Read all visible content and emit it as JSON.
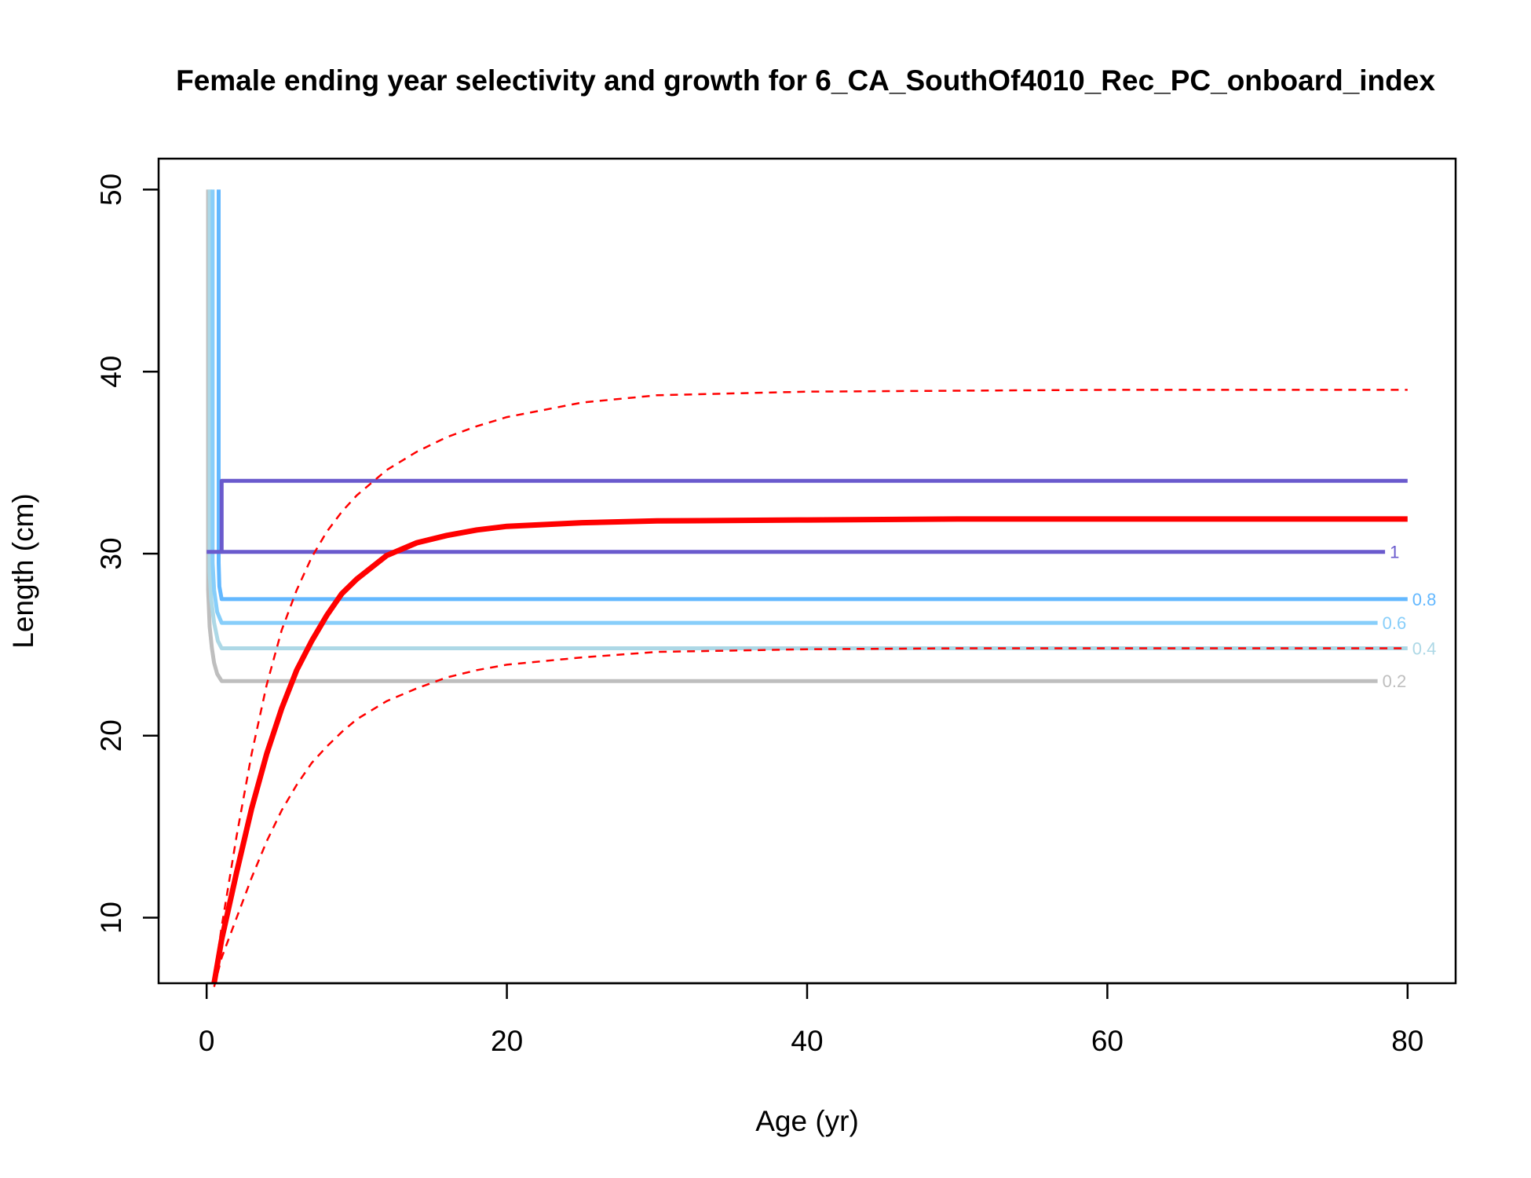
{
  "chart_data": {
    "type": "line",
    "title": "Female ending year selectivity and growth for 6_CA_SouthOf4010_Rec_PC_onboard_index",
    "xlabel": "Age (yr)",
    "ylabel": "Length (cm)",
    "xlim": [
      -3.2,
      83.2
    ],
    "ylim": [
      6.4,
      51.7
    ],
    "xticks": [
      0,
      20,
      40,
      60,
      80
    ],
    "yticks": [
      10,
      20,
      30,
      40,
      50
    ],
    "grid": false,
    "legend": "none",
    "growth": {
      "color": "#ff0000",
      "mean": {
        "x": [
          0.5,
          1,
          2,
          3,
          4,
          5,
          6,
          7,
          8,
          9,
          10,
          12,
          14,
          16,
          18,
          20,
          25,
          30,
          40,
          50,
          60,
          70,
          80
        ],
        "y": [
          6.4,
          8.8,
          12.5,
          16.0,
          19.0,
          21.5,
          23.6,
          25.2,
          26.6,
          27.8,
          28.6,
          29.9,
          30.6,
          31.0,
          31.3,
          31.5,
          31.7,
          31.8,
          31.85,
          31.9,
          31.9,
          31.9,
          31.9
        ]
      },
      "upper": {
        "x": [
          0.5,
          1,
          2,
          3,
          4,
          5,
          6,
          7,
          8,
          9,
          10,
          12,
          14,
          16,
          18,
          20,
          25,
          30,
          40,
          50,
          60,
          70,
          80
        ],
        "y": [
          6.6,
          9.5,
          14.5,
          19.0,
          22.8,
          25.8,
          28.0,
          29.8,
          31.2,
          32.3,
          33.2,
          34.6,
          35.6,
          36.4,
          37.0,
          37.5,
          38.3,
          38.7,
          38.9,
          38.95,
          39.0,
          39.0,
          39.0
        ]
      },
      "lower": {
        "x": [
          0.5,
          1,
          2,
          3,
          4,
          5,
          6,
          7,
          8,
          9,
          10,
          12,
          14,
          16,
          18,
          20,
          25,
          30,
          40,
          50,
          60,
          70,
          80
        ],
        "y": [
          6.2,
          7.8,
          10.0,
          12.2,
          14.2,
          15.9,
          17.3,
          18.5,
          19.4,
          20.2,
          20.9,
          21.9,
          22.6,
          23.2,
          23.6,
          23.9,
          24.3,
          24.6,
          24.75,
          24.8,
          24.8,
          24.8,
          24.8
        ]
      }
    },
    "selectivity_contours": [
      {
        "level": "0.2",
        "color": "#bebebe",
        "label": "0.2",
        "x": [
          0.1,
          0.1,
          0.2,
          0.35,
          0.5,
          0.7,
          1.0,
          78.0
        ],
        "y": [
          50.0,
          28.0,
          26.0,
          24.8,
          24.0,
          23.4,
          23.0,
          23.0
        ]
      },
      {
        "level": "0.4",
        "color": "#add8e6",
        "label": "0.4",
        "x": [
          0.2,
          0.2,
          0.3,
          0.5,
          0.75,
          1.0,
          80.0
        ],
        "y": [
          50.0,
          29.0,
          27.5,
          26.2,
          25.2,
          24.8,
          24.8
        ]
      },
      {
        "level": "0.6",
        "color": "#87cefa",
        "label": "0.6",
        "x": [
          0.4,
          0.4,
          0.5,
          0.7,
          1.0,
          78.0
        ],
        "y": [
          50.0,
          29.5,
          28.0,
          26.8,
          26.2,
          26.2
        ]
      },
      {
        "level": "0.8",
        "color": "#63b8ff",
        "label": "0.8",
        "x": [
          0.8,
          0.8,
          0.85,
          1.0,
          80.0
        ],
        "y": [
          50.0,
          29.5,
          28.2,
          27.5,
          27.5
        ]
      },
      {
        "level": "1",
        "color": "#6a5acd",
        "label": "1",
        "x": [
          0.0,
          1.0,
          1.0,
          80.0
        ],
        "y": [
          30.1,
          30.1,
          34.0,
          34.0
        ],
        "x2": [
          1.0,
          78.5
        ],
        "y2": [
          30.1,
          30.1
        ]
      }
    ]
  }
}
